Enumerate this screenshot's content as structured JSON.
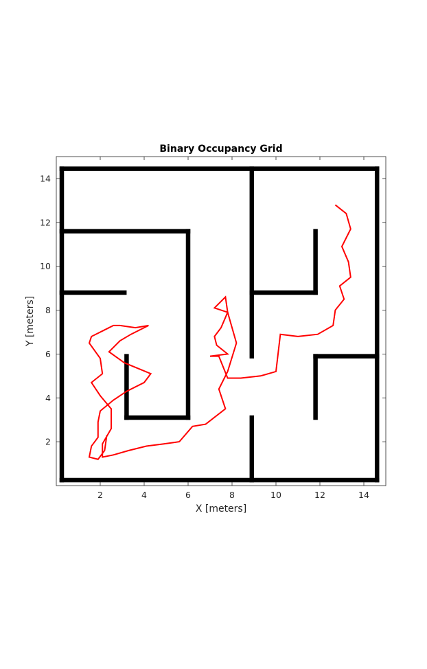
{
  "chart_data": {
    "type": "occupancy-map-with-path",
    "title": "Binary Occupancy Grid",
    "xlabel": "X [meters]",
    "ylabel": "Y [meters]",
    "xlim": [
      0,
      15
    ],
    "ylim": [
      0,
      15
    ],
    "xticks": [
      2,
      4,
      6,
      8,
      10,
      12,
      14
    ],
    "yticks": [
      2,
      4,
      6,
      8,
      10,
      12,
      14
    ],
    "grid": false,
    "colors": {
      "occupied": "#000000",
      "path": "#ff0000",
      "axes": "#262626"
    },
    "walls": [
      {
        "x": [
          0.25,
          14.6
        ],
        "y": [
          14.45,
          14.45
        ]
      },
      {
        "x": [
          0.25,
          14.6
        ],
        "y": [
          0.25,
          0.25
        ]
      },
      {
        "x": [
          0.25,
          0.25
        ],
        "y": [
          0.25,
          14.45
        ]
      },
      {
        "x": [
          14.6,
          14.6
        ],
        "y": [
          0.25,
          14.45
        ]
      },
      {
        "x": [
          0.25,
          6.0
        ],
        "y": [
          11.6,
          11.6
        ]
      },
      {
        "x": [
          6.0,
          6.0
        ],
        "y": [
          3.1,
          11.6
        ]
      },
      {
        "x": [
          3.2,
          6.0
        ],
        "y": [
          3.1,
          3.1
        ]
      },
      {
        "x": [
          3.2,
          3.2
        ],
        "y": [
          3.1,
          5.9
        ]
      },
      {
        "x": [
          0.25,
          3.1
        ],
        "y": [
          8.8,
          8.8
        ]
      },
      {
        "x": [
          8.9,
          8.9
        ],
        "y": [
          5.9,
          14.45
        ]
      },
      {
        "x": [
          8.9,
          8.9
        ],
        "y": [
          0.25,
          3.1
        ]
      },
      {
        "x": [
          8.9,
          11.8
        ],
        "y": [
          8.8,
          8.8
        ]
      },
      {
        "x": [
          11.8,
          11.8
        ],
        "y": [
          8.8,
          11.6
        ]
      },
      {
        "x": [
          11.8,
          14.6
        ],
        "y": [
          5.9,
          5.9
        ]
      },
      {
        "x": [
          11.8,
          11.8
        ],
        "y": [
          3.1,
          5.9
        ]
      }
    ],
    "path": {
      "x": [
        12.7,
        13.2,
        13.4,
        13.0,
        13.3,
        13.4,
        12.9,
        13.1,
        12.7,
        12.6,
        11.9,
        11.0,
        10.2,
        10.0,
        9.3,
        8.4,
        7.8,
        7.4,
        7.0,
        7.8,
        7.3,
        7.2,
        7.5,
        7.8,
        7.2,
        7.7,
        7.8,
        8.2,
        7.8,
        7.4,
        7.7,
        6.8,
        6.2,
        5.6,
        4.9,
        4.1,
        3.3,
        2.6,
        2.1,
        2.1,
        2.5,
        2.5,
        2.0,
        1.6,
        2.1,
        2.0,
        1.5,
        1.6,
        2.2,
        2.6,
        2.9,
        3.6,
        4.2,
        3.4,
        2.9,
        2.4,
        3.1,
        4.3,
        4.0,
        3.2,
        2.6,
        2.0,
        1.9,
        1.9,
        1.6,
        1.5,
        1.9,
        2.2,
        2.3
      ]
    },
    "path_y": [
      12.8,
      12.4,
      11.7,
      10.9,
      10.2,
      9.5,
      9.1,
      8.5,
      8.0,
      7.3,
      6.9,
      6.8,
      6.9,
      5.2,
      5.0,
      4.9,
      4.9,
      5.9,
      5.9,
      6.0,
      6.4,
      6.8,
      7.2,
      7.9,
      8.1,
      8.6,
      7.9,
      6.5,
      5.2,
      4.4,
      3.5,
      2.8,
      2.7,
      2.0,
      1.9,
      1.8,
      1.6,
      1.4,
      1.3,
      1.9,
      2.6,
      3.5,
      4.1,
      4.7,
      5.1,
      5.8,
      6.5,
      6.8,
      7.1,
      7.3,
      7.3,
      7.2,
      7.3,
      6.9,
      6.6,
      6.1,
      5.6,
      5.1,
      4.7,
      4.3,
      3.9,
      3.4,
      2.9,
      2.2,
      1.8,
      1.3,
      1.2,
      1.6,
      2.3
    ]
  }
}
